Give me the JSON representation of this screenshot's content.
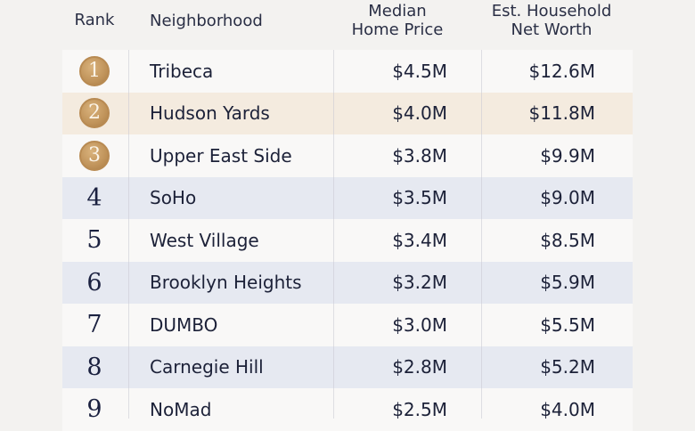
{
  "headers": {
    "rank": "Rank",
    "neighborhood": "Neighborhood",
    "price_line1": "Median",
    "price_line2": "Home Price",
    "worth_line1": "Est. Household",
    "worth_line2": "Net Worth"
  },
  "colors": {
    "medal": "#c0935a",
    "row_white": "#f9f8f7",
    "row_blue": "#e6e9f1",
    "row_beige": "#f4ebdf"
  },
  "rows": [
    {
      "rank": "1",
      "medal": true,
      "neighborhood": "Tribeca",
      "price": "$4.5M",
      "net_worth": "$12.6M",
      "shade": "white"
    },
    {
      "rank": "2",
      "medal": true,
      "neighborhood": "Hudson Yards",
      "price": "$4.0M",
      "net_worth": "$11.8M",
      "shade": "beige"
    },
    {
      "rank": "3",
      "medal": true,
      "neighborhood": "Upper East Side",
      "price": "$3.8M",
      "net_worth": "$9.9M",
      "shade": "white"
    },
    {
      "rank": "4",
      "medal": false,
      "neighborhood": "SoHo",
      "price": "$3.5M",
      "net_worth": "$9.0M",
      "shade": "blue"
    },
    {
      "rank": "5",
      "medal": false,
      "neighborhood": "West Village",
      "price": "$3.4M",
      "net_worth": "$8.5M",
      "shade": "white"
    },
    {
      "rank": "6",
      "medal": false,
      "neighborhood": "Brooklyn Heights",
      "price": "$3.2M",
      "net_worth": "$5.9M",
      "shade": "blue"
    },
    {
      "rank": "7",
      "medal": false,
      "neighborhood": "DUMBO",
      "price": "$3.0M",
      "net_worth": "$5.5M",
      "shade": "white"
    },
    {
      "rank": "8",
      "medal": false,
      "neighborhood": "Carnegie Hill",
      "price": "$2.8M",
      "net_worth": "$5.2M",
      "shade": "blue"
    },
    {
      "rank": "9",
      "medal": false,
      "neighborhood": "NoMad",
      "price": "$2.5M",
      "net_worth": "$4.0M",
      "shade": "white"
    }
  ]
}
